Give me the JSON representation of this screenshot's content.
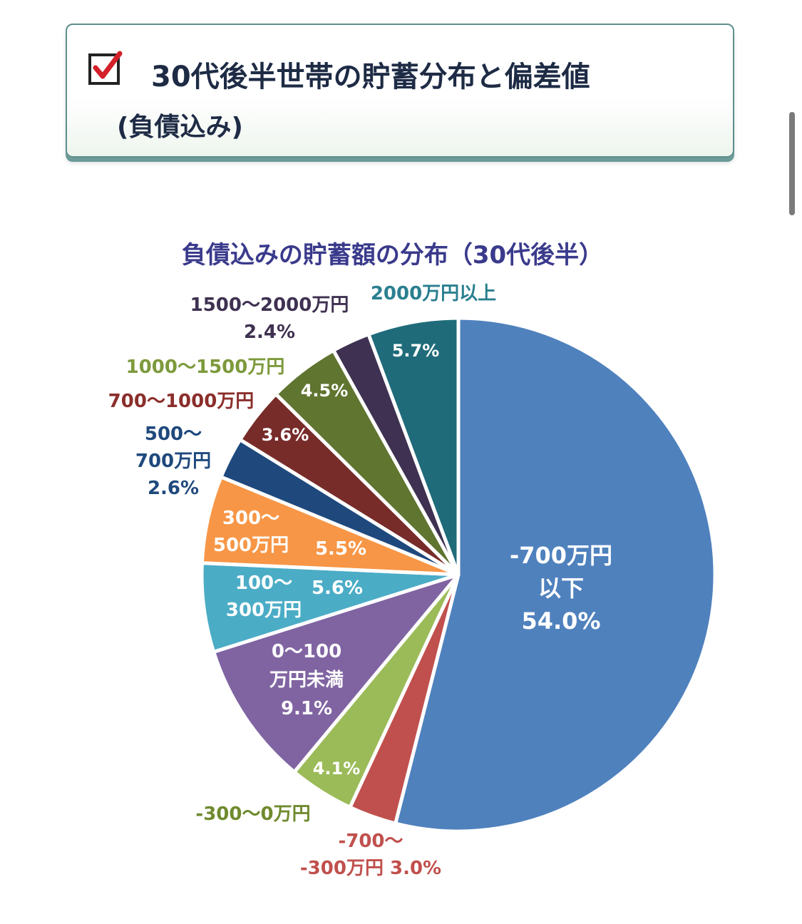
{
  "header": {
    "title": "30代後半世帯の貯蓄分布と偏差値",
    "subtitle": "(負債込み)"
  },
  "chart_data": {
    "type": "pie",
    "title": "負債込みの貯蓄額の分布（30代後半）",
    "slices": [
      {
        "label": "-700万円以下",
        "value": 54.0,
        "value_text": "54.0%",
        "color": "#4f81bd"
      },
      {
        "label": "-700〜-300万円",
        "value": 3.0,
        "value_text": "3.0%",
        "color": "#c0504d"
      },
      {
        "label": "-300〜0万円",
        "value": 4.1,
        "value_text": "4.1%",
        "color": "#9bbb59"
      },
      {
        "label": "0〜100万円未満",
        "value": 9.1,
        "value_text": "9.1%",
        "color": "#8064a2"
      },
      {
        "label": "100〜300万円",
        "value": 5.6,
        "value_text": "5.6%",
        "color": "#4bacc6"
      },
      {
        "label": "300〜500万円",
        "value": 5.5,
        "value_text": "5.5%",
        "color": "#f79646"
      },
      {
        "label": "500〜700万円",
        "value": 2.6,
        "value_text": "2.6%",
        "color": "#1f497d"
      },
      {
        "label": "700〜1000万円",
        "value": 3.6,
        "value_text": "3.6%",
        "color": "#772c2a"
      },
      {
        "label": "1000〜1500万円",
        "value": 4.5,
        "value_text": "4.5%",
        "color": "#5f7530"
      },
      {
        "label": "1500〜2000万円",
        "value": 2.4,
        "value_text": "2.4%",
        "color": "#3f3151"
      },
      {
        "label": "2000万円以上",
        "value": 5.7,
        "value_text": "5.7%",
        "color": "#1f6b7a"
      }
    ],
    "label_lines": {
      "s0_in": [
        "-700万円",
        "以下",
        "54.0%"
      ],
      "s1_out": [
        "-700〜",
        "-300万円 3.0%"
      ],
      "s2_out": [
        "-300〜0万円"
      ],
      "s2_in": [
        "4.1%"
      ],
      "s3_in": [
        "0〜100",
        "万円未満",
        "9.1%"
      ],
      "s4_in": [
        "100〜",
        "300万円"
      ],
      "s4_pct": [
        "5.6%"
      ],
      "s5_in": [
        "300〜",
        "500万円"
      ],
      "s5_pct": [
        "5.5%"
      ],
      "s6_out": [
        "500〜",
        "700万円",
        "2.6%"
      ],
      "s7_out": [
        "700〜1000万円"
      ],
      "s7_in": [
        "3.6%"
      ],
      "s8_out": [
        "1000〜1500万円"
      ],
      "s8_in": [
        "4.5%"
      ],
      "s9_out": [
        "1500〜2000万円",
        "2.4%"
      ],
      "s10_out": [
        "2000万円以上"
      ],
      "s10_in": [
        "5.7%"
      ]
    },
    "label_colors": {
      "white": "#ffffff",
      "s1": "#c0504d",
      "s2": "#6f8a2e",
      "s6": "#1f497d",
      "s7": "#8b2e2b",
      "s8": "#7d9a3c",
      "s9": "#3f3151",
      "s10": "#2a7f8f"
    }
  }
}
